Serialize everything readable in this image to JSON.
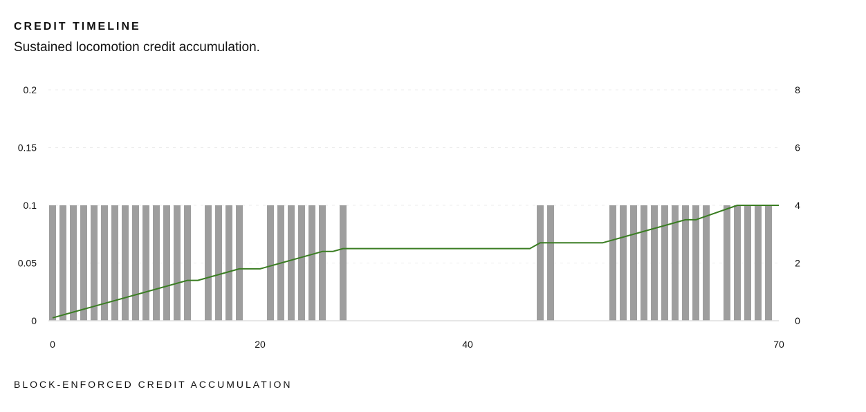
{
  "header": {
    "title": "CREDIT TIMELINE",
    "subtitle": "Sustained locomotion credit accumulation."
  },
  "footer": {
    "label": "BLOCK-ENFORCED CREDIT ACCUMULATION"
  },
  "chart_data": {
    "type": "bar",
    "xlim": [
      0,
      70
    ],
    "x_ticks": [
      0,
      20,
      40,
      70
    ],
    "y_left": {
      "lim": [
        0,
        0.2
      ],
      "ticks": [
        "0",
        "0.05",
        "0.1",
        "0.15",
        "0.2"
      ]
    },
    "y_right": {
      "lim": [
        0,
        8
      ],
      "ticks": [
        "0",
        "2",
        "4",
        "6",
        "8"
      ]
    },
    "grid": true,
    "bar_color": "#9e9e9e",
    "line_color": "#3a7d22",
    "bars": {
      "axis": "left",
      "x": [
        0,
        1,
        2,
        3,
        4,
        5,
        6,
        7,
        8,
        9,
        10,
        11,
        12,
        13,
        15,
        16,
        17,
        18,
        21,
        22,
        23,
        24,
        25,
        26,
        28,
        47,
        48,
        54,
        55,
        56,
        57,
        58,
        59,
        60,
        61,
        62,
        63,
        65,
        66,
        67,
        68,
        69
      ],
      "value": 0.1
    },
    "line": {
      "axis": "right",
      "points": [
        [
          0,
          0.1
        ],
        [
          13,
          1.4
        ],
        [
          14,
          1.4
        ],
        [
          18,
          1.8
        ],
        [
          20,
          1.8
        ],
        [
          26,
          2.4
        ],
        [
          27,
          2.4
        ],
        [
          28,
          2.5
        ],
        [
          46,
          2.5
        ],
        [
          47,
          2.7
        ],
        [
          53,
          2.7
        ],
        [
          61,
          3.5
        ],
        [
          62,
          3.5
        ],
        [
          66,
          4.0
        ],
        [
          70,
          4.0
        ]
      ]
    }
  }
}
